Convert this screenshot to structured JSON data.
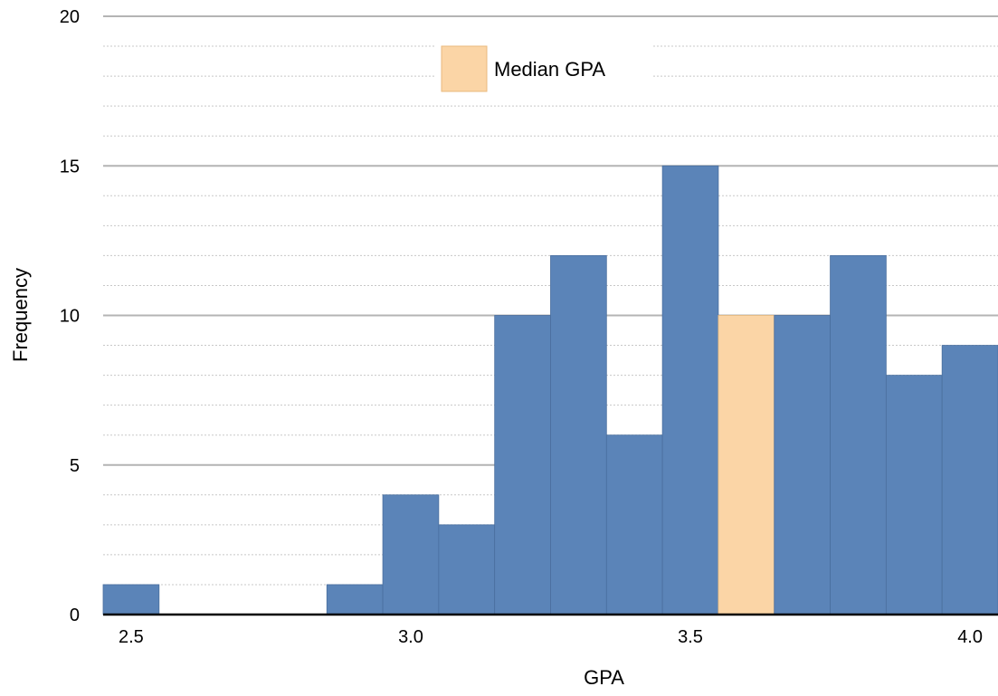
{
  "chart_data": {
    "type": "bar",
    "title": "",
    "xlabel": "GPA",
    "ylabel": "Frequency",
    "ylim": [
      0,
      20
    ],
    "xlim": [
      2.45,
      4.05
    ],
    "bin_width": 0.1,
    "y_ticks": [
      "0",
      "5",
      "10",
      "15",
      "20"
    ],
    "x_ticks": [
      "2.5",
      "3.0",
      "3.5",
      "4.0"
    ],
    "grid": true,
    "legend_position": "top-center",
    "bins": [
      {
        "center": 2.5,
        "value": 1
      },
      {
        "center": 2.6,
        "value": 0
      },
      {
        "center": 2.7,
        "value": 0
      },
      {
        "center": 2.8,
        "value": 0
      },
      {
        "center": 2.9,
        "value": 1
      },
      {
        "center": 3.0,
        "value": 4
      },
      {
        "center": 3.1,
        "value": 3
      },
      {
        "center": 3.2,
        "value": 10
      },
      {
        "center": 3.3,
        "value": 12
      },
      {
        "center": 3.4,
        "value": 6
      },
      {
        "center": 3.5,
        "value": 15
      },
      {
        "center": 3.6,
        "value": 10,
        "highlight": true
      },
      {
        "center": 3.7,
        "value": 10
      },
      {
        "center": 3.8,
        "value": 12
      },
      {
        "center": 3.9,
        "value": 8
      },
      {
        "center": 4.0,
        "value": 9
      }
    ],
    "series": [
      {
        "name": "Median GPA",
        "color": "#fbd5a6"
      }
    ],
    "bar_color": "#5b84b8",
    "highlight_color": "#fbd5a6"
  }
}
